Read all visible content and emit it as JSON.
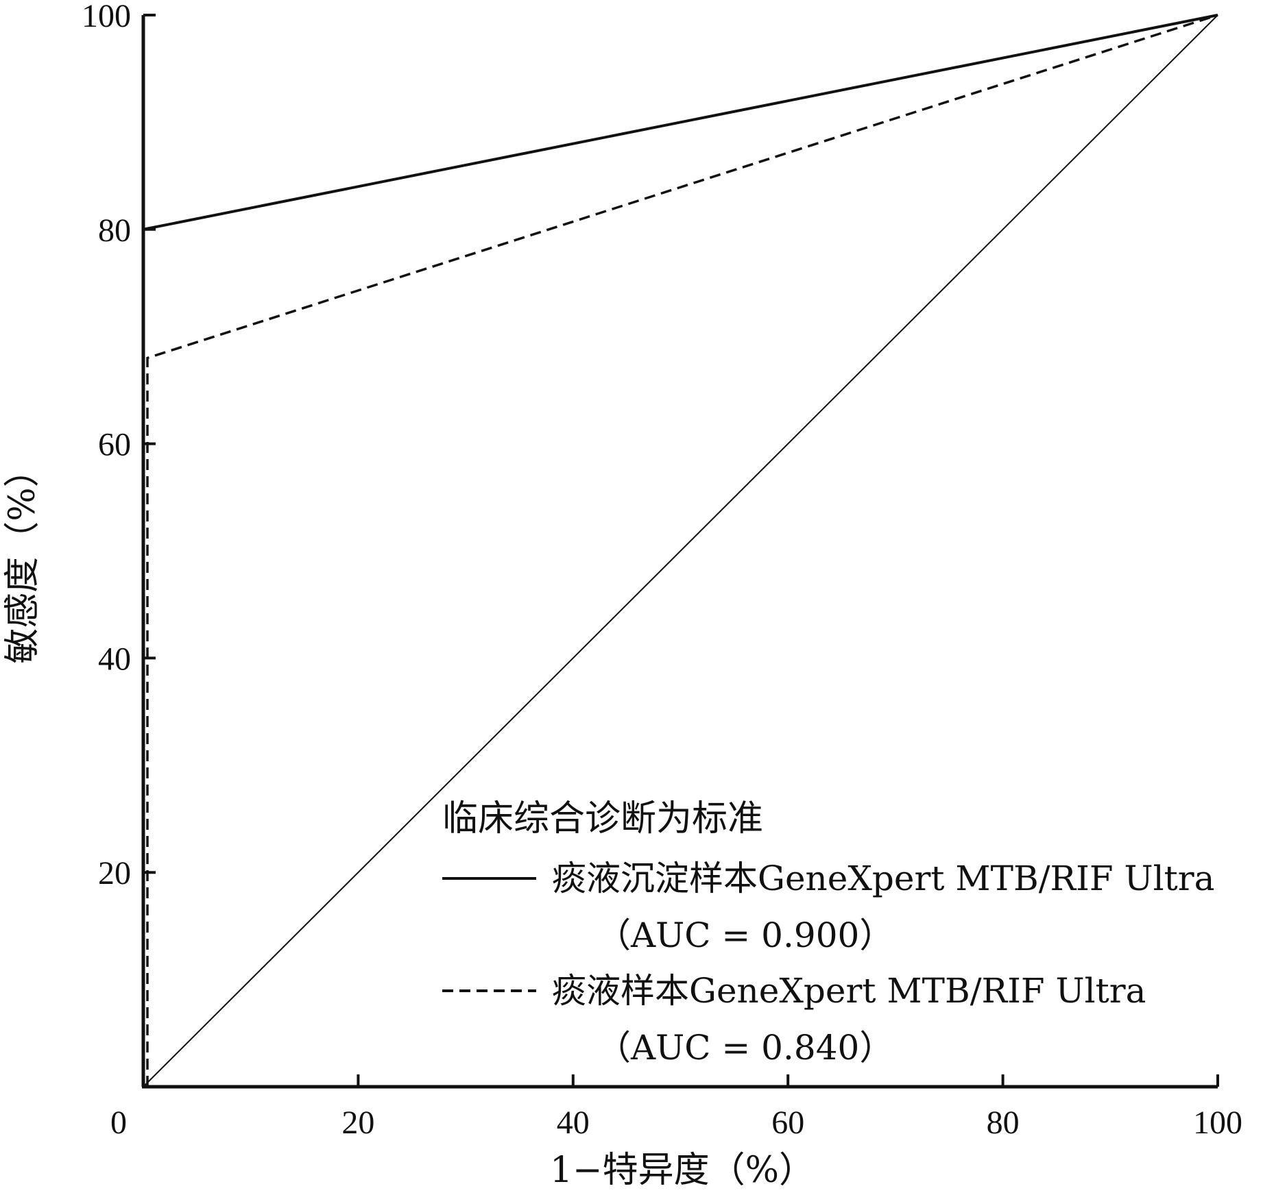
{
  "chart_data": {
    "type": "line",
    "title": "",
    "xlabel": "1−特异度（%）",
    "ylabel": "敏感度（%）",
    "xlim": [
      0,
      100
    ],
    "ylim": [
      0,
      100
    ],
    "xticks": [
      "0",
      "20",
      "40",
      "60",
      "80",
      "100"
    ],
    "yticks": [
      "20",
      "40",
      "60",
      "80",
      "100"
    ],
    "legend": {
      "title": "临床综合诊断为标准",
      "placement": "bottom-right"
    },
    "series": [
      {
        "name": "痰液沉淀样本GeneXpert MTB/RIF Ultra",
        "auc_label": "（AUC = 0.900）",
        "style": "solid",
        "x": [
          0,
          0,
          100
        ],
        "y": [
          0,
          80,
          100
        ]
      },
      {
        "name": "痰液样本GeneXpert MTB/RIF Ultra",
        "auc_label": "（AUC = 0.840）",
        "style": "dashed",
        "x": [
          0,
          0,
          100
        ],
        "y": [
          0,
          68,
          100
        ]
      }
    ],
    "reference_line": {
      "style": "thin-solid",
      "x": [
        0,
        100
      ],
      "y": [
        0,
        100
      ]
    },
    "grid": false,
    "colors": {
      "line": "#111111",
      "background": "#ffffff"
    }
  }
}
